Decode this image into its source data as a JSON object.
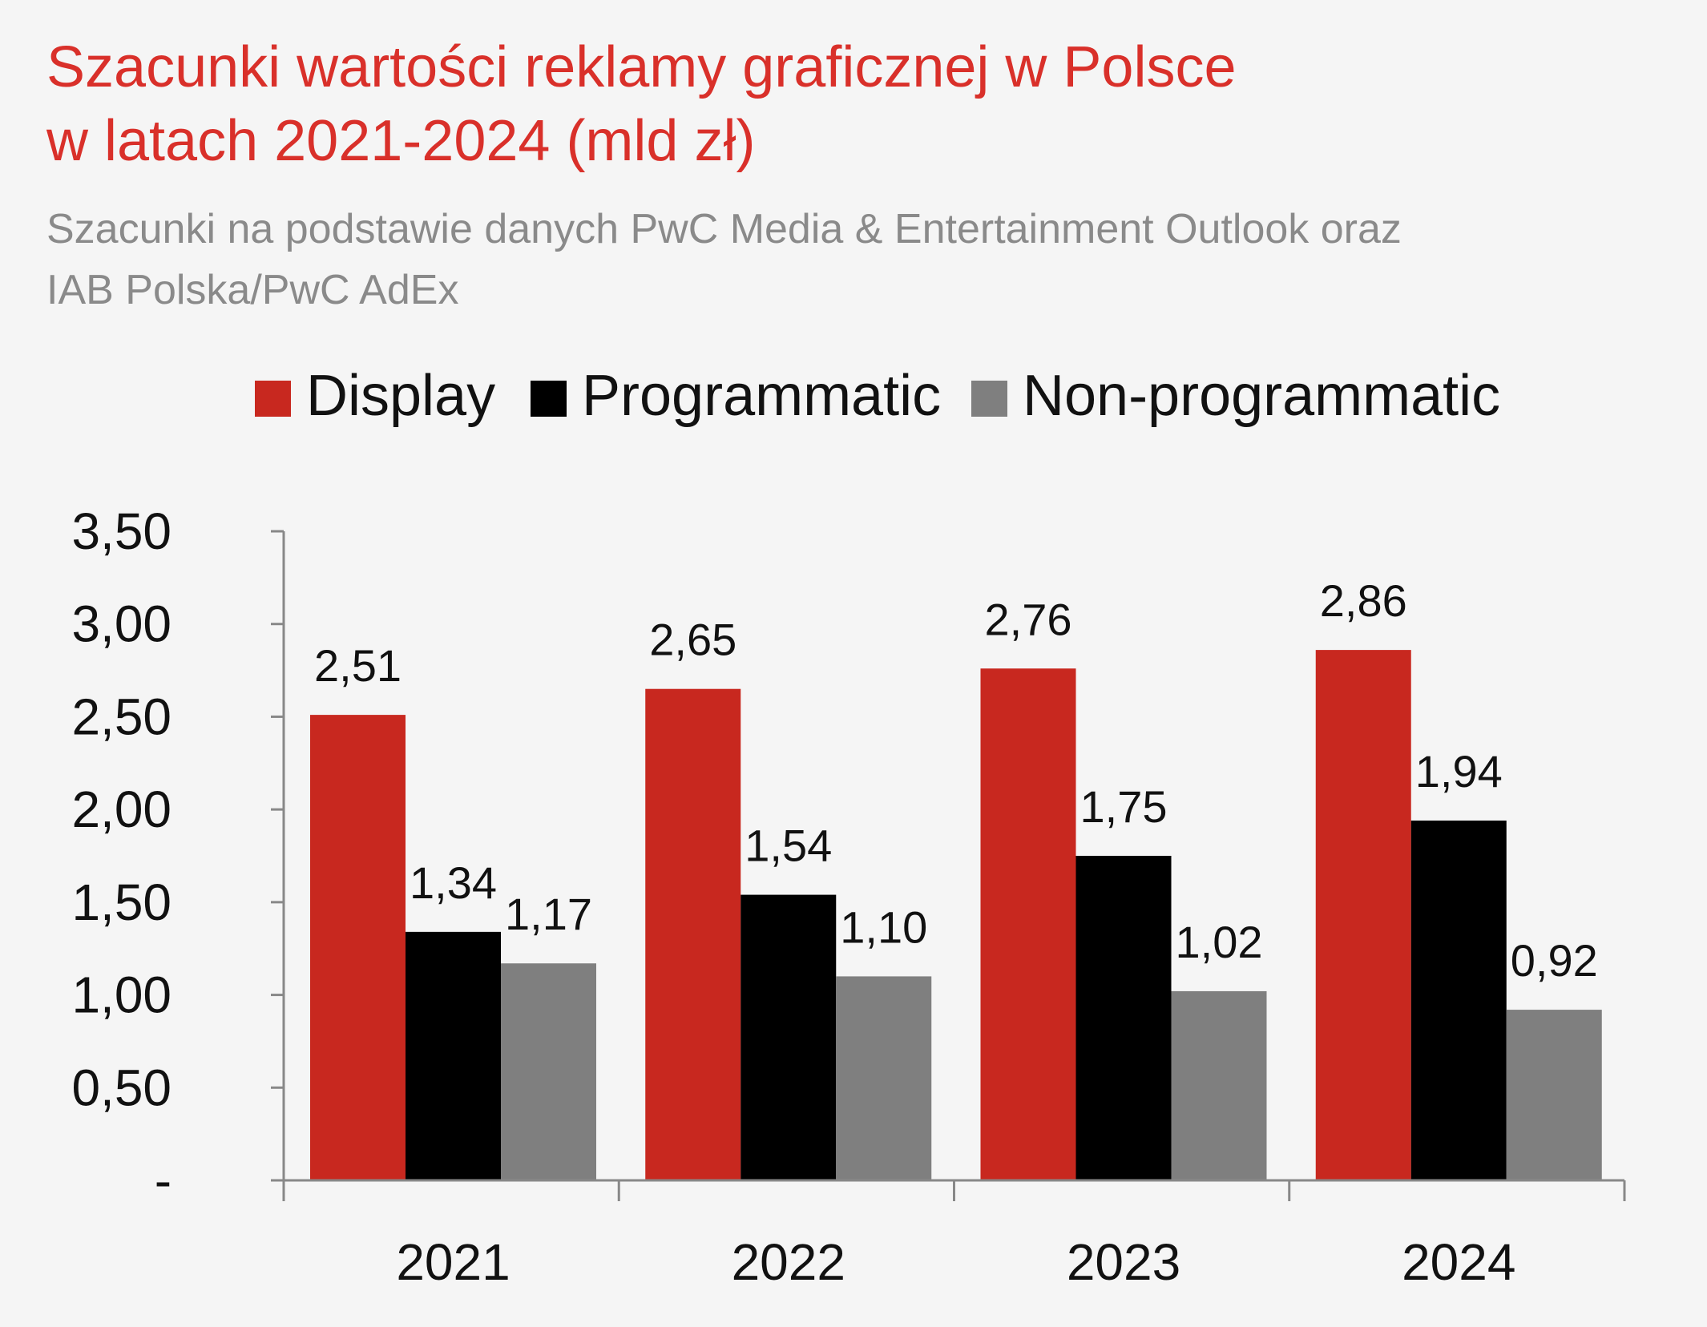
{
  "chart_data": {
    "type": "bar",
    "title_lines": [
      "Szacunki wartości reklamy graficznej w Polsce",
      "w latach 2021-2024 (mld zł)"
    ],
    "subtitle_lines": [
      "Szacunki na podstawie danych PwC Media & Entertainment Outlook oraz",
      "IAB Polska/PwC AdEx"
    ],
    "categories": [
      "2021",
      "2022",
      "2023",
      "2024"
    ],
    "series": [
      {
        "name": "Display",
        "color": "#c8281f",
        "values": [
          2.51,
          2.65,
          2.76,
          2.86
        ],
        "labels": [
          "2,51",
          "2,65",
          "2,76",
          "2,86"
        ]
      },
      {
        "name": "Programmatic",
        "color": "#000000",
        "values": [
          1.34,
          1.54,
          1.75,
          1.94
        ],
        "labels": [
          "1,34",
          "1,54",
          "1,75",
          "1,94"
        ]
      },
      {
        "name": "Non-programmatic",
        "color": "#7f7f7f",
        "values": [
          1.17,
          1.1,
          1.02,
          0.92
        ],
        "labels": [
          "1,17",
          "1,10",
          "1,02",
          "0,92"
        ]
      }
    ],
    "ylim": [
      0,
      3.5
    ],
    "yticks": [
      0,
      0.5,
      1,
      1.5,
      2,
      2.5,
      3,
      3.5
    ],
    "ytick_labels": [
      "-",
      "0,50",
      "1,00",
      "1,50",
      "2,00",
      "2,50",
      "3,00",
      "3,50"
    ],
    "legend_position": "top",
    "grid": false
  }
}
